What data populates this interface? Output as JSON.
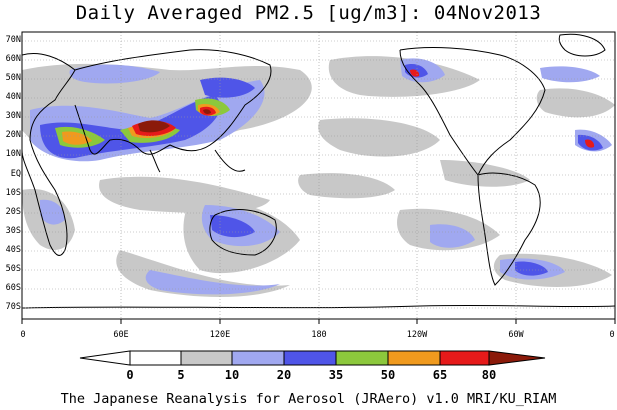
{
  "title": "Daily Averaged PM2.5 [ug/m3]: 04Nov2013",
  "footer": "The Japanese Reanalysis for Aerosol (JRAero) v1.0 MRI/KU_RIAM",
  "latitude_labels": [
    "70N",
    "60N",
    "50N",
    "40N",
    "30N",
    "20N",
    "10N",
    "EQ",
    "10S",
    "20S",
    "30S",
    "40S",
    "50S",
    "60S",
    "70S"
  ],
  "longitude_labels": [
    "0",
    "60E",
    "120E",
    "180",
    "120W",
    "60W",
    "0"
  ],
  "colorbar": {
    "levels": [
      "0",
      "5",
      "10",
      "20",
      "35",
      "50",
      "65",
      "80"
    ],
    "colors": [
      "#ffffff",
      "#c8c8c8",
      "#a0a8f0",
      "#4f55e8",
      "#8cc83c",
      "#f09a1e",
      "#e61a1a",
      "#8b1a0a"
    ]
  },
  "background_color": "#ffffff",
  "coastline_color": "#000000"
}
